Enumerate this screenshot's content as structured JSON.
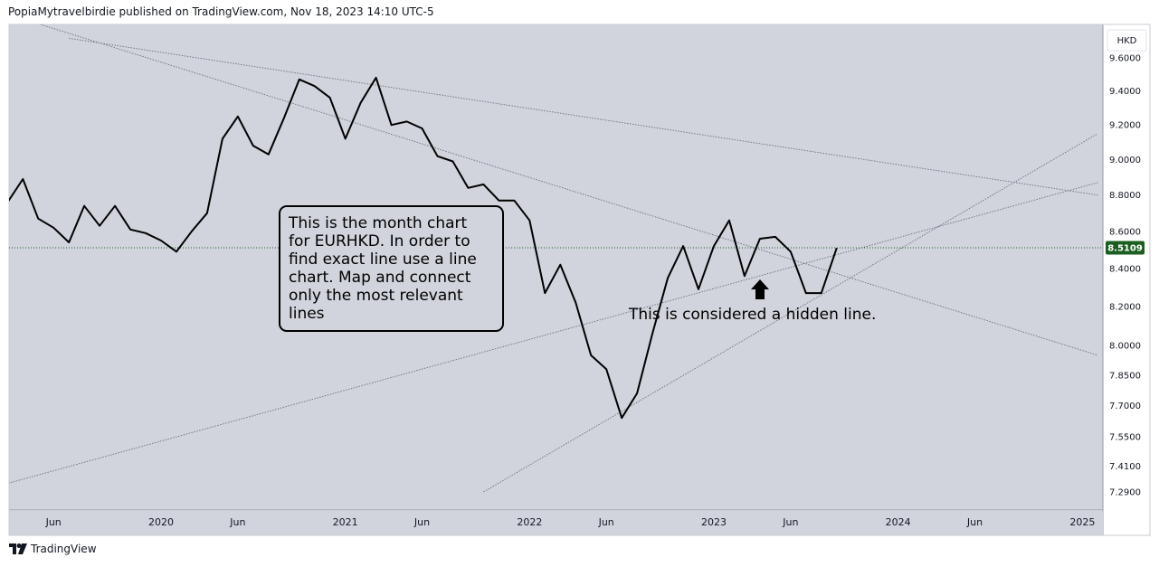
{
  "header": {
    "attribution": "PopiaMytravelbirdie published on TradingView.com, Nov 18, 2023 14:10 UTC-5"
  },
  "footer": {
    "brand": "TradingView",
    "logo_icon": "tradingview-logo-icon"
  },
  "currency_badge": "HKD",
  "annotations": {
    "note": [
      "This is the month chart",
      "for EURHKD. In order to",
      "find exact line use a line",
      "chart. Map and connect",
      "only the most relevant",
      "lines"
    ],
    "hidden_line": "This is considered a hidden line.",
    "arrow_icon": "up-arrow-icon"
  },
  "chart_data": {
    "type": "line",
    "symbol": "EURHKD",
    "interval": "1M",
    "line_color": "#000000",
    "background": "#d1d4dc",
    "log_scale": true,
    "y_ticks": [
      9.6,
      9.4,
      9.2,
      9.0,
      8.8,
      8.6,
      8.4,
      8.2,
      8.0,
      7.85,
      7.7,
      7.55,
      7.41,
      7.29
    ],
    "y_tick_labels": [
      "9.6000",
      "9.4000",
      "9.2000",
      "9.0000",
      "8.8000",
      "8.6000",
      "8.4000",
      "8.2000",
      "8.0000",
      "7.8500",
      "7.7000",
      "7.5500",
      "7.4100",
      "7.2900"
    ],
    "last_price": 8.5109,
    "last_price_label": "8.5109",
    "last_price_color": "#1b5e20",
    "x_ticks": [
      "2019-06",
      "2020-01",
      "2020-06",
      "2021-01",
      "2021-06",
      "2022-01",
      "2022-06",
      "2023-01",
      "2023-06",
      "2024-01",
      "2024-06",
      "2025-01"
    ],
    "x_tick_labels": [
      "Jun",
      "2020",
      "Jun",
      "2021",
      "Jun",
      "2022",
      "Jun",
      "2023",
      "Jun",
      "2024",
      "Jun",
      "2025"
    ],
    "x_range": [
      "2019-01",
      "2025-02"
    ],
    "series": [
      {
        "values": [
          [
            "2019-01",
            8.81
          ],
          [
            "2019-02",
            8.8
          ],
          [
            "2019-03",
            8.76
          ],
          [
            "2019-04",
            8.89
          ],
          [
            "2019-05",
            8.67
          ],
          [
            "2019-06",
            8.62
          ],
          [
            "2019-07",
            8.54
          ],
          [
            "2019-08",
            8.74
          ],
          [
            "2019-09",
            8.63
          ],
          [
            "2019-10",
            8.74
          ],
          [
            "2019-11",
            8.61
          ],
          [
            "2019-12",
            8.59
          ],
          [
            "2020-01",
            8.55
          ],
          [
            "2020-02",
            8.49
          ],
          [
            "2020-03",
            8.6
          ],
          [
            "2020-04",
            8.7
          ],
          [
            "2020-05",
            9.12
          ],
          [
            "2020-06",
            9.25
          ],
          [
            "2020-07",
            9.08
          ],
          [
            "2020-08",
            9.03
          ],
          [
            "2020-09",
            9.24
          ],
          [
            "2020-10",
            9.47
          ],
          [
            "2020-11",
            9.43
          ],
          [
            "2020-12",
            9.36
          ],
          [
            "2021-01",
            9.12
          ],
          [
            "2021-02",
            9.33
          ],
          [
            "2021-03",
            9.48
          ],
          [
            "2021-04",
            9.2
          ],
          [
            "2021-05",
            9.22
          ],
          [
            "2021-06",
            9.18
          ],
          [
            "2021-07",
            9.02
          ],
          [
            "2021-08",
            8.99
          ],
          [
            "2021-09",
            8.84
          ],
          [
            "2021-10",
            8.86
          ],
          [
            "2021-11",
            8.77
          ],
          [
            "2021-12",
            8.77
          ],
          [
            "2022-01",
            8.66
          ],
          [
            "2022-02",
            8.27
          ],
          [
            "2022-03",
            8.42
          ],
          [
            "2022-04",
            8.22
          ],
          [
            "2022-05",
            7.95
          ],
          [
            "2022-06",
            7.88
          ],
          [
            "2022-07",
            7.64
          ],
          [
            "2022-08",
            7.76
          ],
          [
            "2022-09",
            8.06
          ],
          [
            "2022-10",
            8.35
          ],
          [
            "2022-11",
            8.52
          ],
          [
            "2022-12",
            8.29
          ],
          [
            "2023-01",
            8.52
          ],
          [
            "2023-02",
            8.66
          ],
          [
            "2023-03",
            8.36
          ],
          [
            "2023-04",
            8.56
          ],
          [
            "2023-05",
            8.57
          ],
          [
            "2023-06",
            8.49
          ],
          [
            "2023-07",
            8.27
          ],
          [
            "2023-08",
            8.27
          ],
          [
            "2023-09",
            8.51
          ]
        ]
      }
    ],
    "trendlines": [
      {
        "from": [
          "2019-03",
          9.87
        ],
        "to": [
          "2025-02",
          7.95
        ]
      },
      {
        "from": [
          "2019-01",
          7.29
        ],
        "to": [
          "2025-02",
          8.87
        ]
      },
      {
        "from": [
          "2021-10",
          7.29
        ],
        "to": [
          "2025-02",
          9.15
        ]
      },
      {
        "from": [
          "2019-07",
          9.72
        ],
        "to": [
          "2025-02",
          8.8
        ]
      }
    ]
  }
}
